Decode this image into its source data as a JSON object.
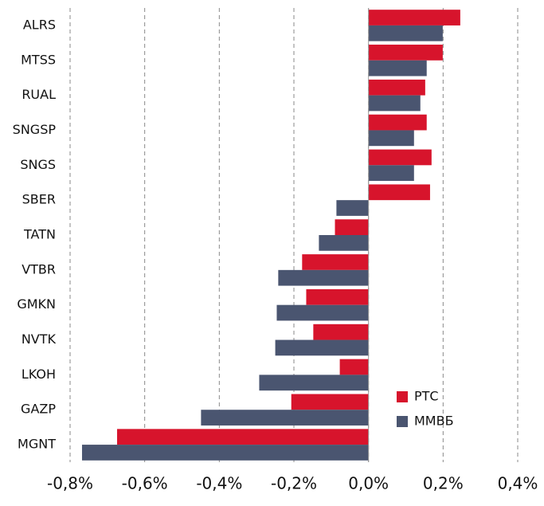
{
  "chart_data": {
    "type": "barh",
    "categories": [
      "ALRS",
      "MTSS",
      "RUAL",
      "SNGSP",
      "SNGS",
      "SBER",
      "TATN",
      "VTBR",
      "GMKN",
      "NVTK",
      "LKOH",
      "GAZP",
      "MGNT"
    ],
    "series": [
      {
        "name": "РТС",
        "color": "#d7142c",
        "values": [
          0.246,
          0.199,
          0.152,
          0.156,
          0.169,
          0.165,
          -0.09,
          -0.178,
          -0.167,
          -0.148,
          -0.077,
          -0.207,
          -0.674
        ]
      },
      {
        "name": "ММВБ",
        "color": "#4a5570",
        "values": [
          0.199,
          0.156,
          0.139,
          0.122,
          0.122,
          -0.086,
          -0.133,
          -0.242,
          -0.246,
          -0.25,
          -0.293,
          -0.449,
          -0.768
        ]
      }
    ],
    "xlim": [
      -0.8,
      0.4
    ],
    "xticks": [
      {
        "value": -0.8,
        "label": "-0,8%"
      },
      {
        "value": -0.6,
        "label": "-0,6%"
      },
      {
        "value": -0.4,
        "label": "-0,4%"
      },
      {
        "value": -0.2,
        "label": "-0,2%"
      },
      {
        "value": 0.0,
        "label": "0,0%"
      },
      {
        "value": 0.2,
        "label": "0,2%"
      },
      {
        "value": 0.4,
        "label": "0,4%"
      }
    ],
    "grid": true,
    "legend": "lower right"
  }
}
